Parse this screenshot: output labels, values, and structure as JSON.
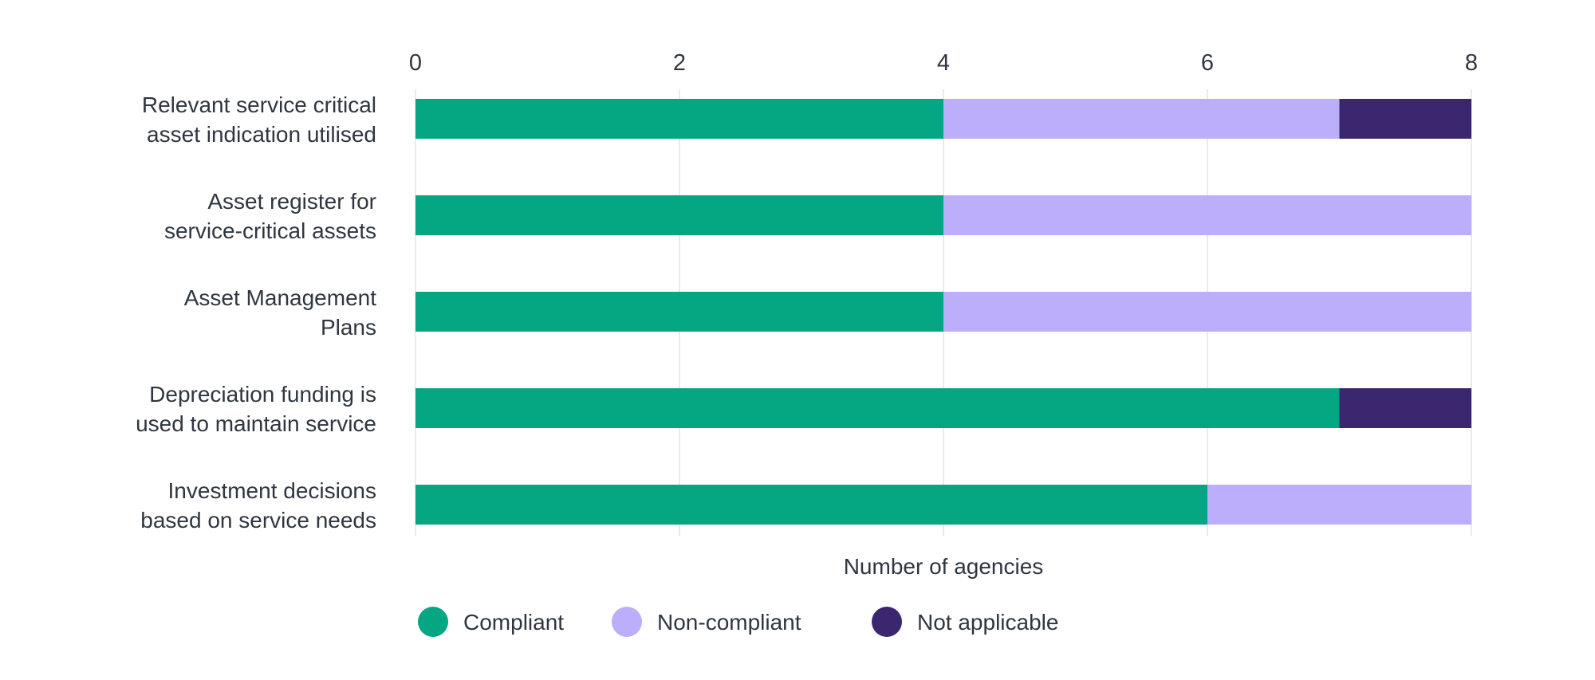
{
  "chart_data": {
    "type": "bar",
    "orientation": "horizontal",
    "stacked": true,
    "categories": [
      [
        "Relevant service critical",
        "asset indication utilised"
      ],
      [
        "Asset register for",
        "service-critical assets"
      ],
      [
        "Asset Management",
        "Plans"
      ],
      [
        "Depreciation funding is",
        "used to maintain service"
      ],
      [
        "Investment decisions",
        "based on service needs"
      ]
    ],
    "series": [
      {
        "name": "Compliant",
        "color": "#05a783",
        "values": [
          4,
          4,
          4,
          7,
          6
        ]
      },
      {
        "name": "Non-compliant",
        "color": "#bcaefb",
        "values": [
          3,
          4,
          4,
          0,
          2
        ]
      },
      {
        "name": "Not applicable",
        "color": "#3a276f",
        "values": [
          1,
          0,
          0,
          1,
          0
        ]
      }
    ],
    "xlim": [
      0,
      8
    ],
    "xticks": [
      0,
      2,
      4,
      6,
      8
    ],
    "xlabel": "Number of agencies",
    "ylabel": "",
    "title": "",
    "grid": true,
    "axis_position": "top",
    "legend_position": "bottom"
  }
}
